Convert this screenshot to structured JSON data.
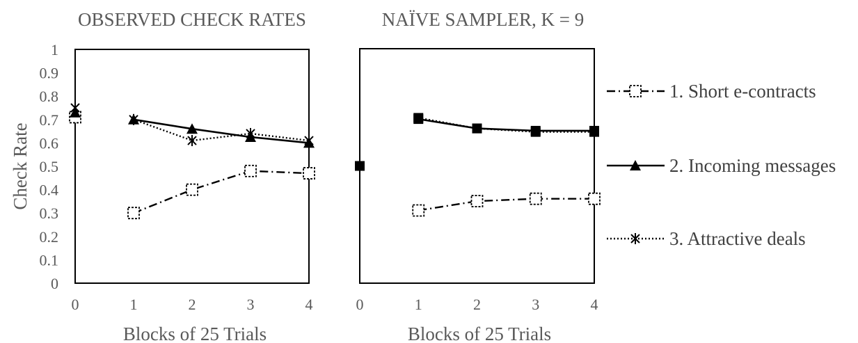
{
  "chart_data": [
    {
      "type": "line",
      "title": "OBSERVED CHECK RATES",
      "xlabel": "Blocks of 25 Trials",
      "ylabel": "Check Rate",
      "ylim": [
        0,
        1
      ],
      "xlim": [
        0,
        4
      ],
      "x_ticks": [
        "0",
        "1",
        "2",
        "3",
        "4"
      ],
      "y_ticks": [
        "0",
        "0.1",
        "0.2",
        "0.3",
        "0.4",
        "0.5",
        "0.6",
        "0.7",
        "0.8",
        "0.9",
        "1"
      ],
      "grid": false,
      "series": [
        {
          "name": "1. Short e-contracts",
          "points": [
            [
              0,
              0.71
            ],
            [
              1,
              0.3
            ],
            [
              2,
              0.4
            ],
            [
              3,
              0.48
            ],
            [
              4,
              0.47
            ]
          ]
        },
        {
          "name": "2. Incoming messages",
          "points": [
            [
              0,
              0.73
            ],
            [
              1,
              0.7
            ],
            [
              2,
              0.66
            ],
            [
              3,
              0.625
            ],
            [
              4,
              0.6
            ]
          ]
        },
        {
          "name": "3. Attractive deals",
          "points": [
            [
              0,
              0.75
            ],
            [
              1,
              0.7
            ],
            [
              2,
              0.61
            ],
            [
              3,
              0.64
            ],
            [
              4,
              0.61
            ]
          ]
        }
      ]
    },
    {
      "type": "line",
      "title": "NAÏVE SAMPLER, K = 9",
      "xlabel": "Blocks of 25 Trials",
      "ylim": [
        0,
        1
      ],
      "xlim": [
        0,
        4
      ],
      "x_ticks": [
        "0",
        "1",
        "2",
        "3",
        "4"
      ],
      "grid": false,
      "extra_points": [
        {
          "x": 0,
          "y": 0.5
        }
      ],
      "series": [
        {
          "name": "1. Short e-contracts",
          "points": [
            [
              1,
              0.31
            ],
            [
              2,
              0.35
            ],
            [
              3,
              0.36
            ],
            [
              4,
              0.36
            ]
          ]
        },
        {
          "name": "2. Incoming messages",
          "points": [
            [
              1,
              0.7
            ],
            [
              2,
              0.66
            ],
            [
              3,
              0.65
            ],
            [
              4,
              0.65
            ]
          ]
        },
        {
          "name": "3. Attractive deals",
          "points": [
            [
              1,
              0.705
            ],
            [
              2,
              0.66
            ],
            [
              3,
              0.645
            ],
            [
              4,
              0.645
            ]
          ]
        }
      ]
    }
  ],
  "legend": {
    "position": "right",
    "items": [
      {
        "label": "1. Short e-contracts",
        "line": "dash-dot",
        "marker": "open-square"
      },
      {
        "label": "2. Incoming messages",
        "line": "solid",
        "marker": "triangle"
      },
      {
        "label": "3. Attractive deals",
        "line": "dotted",
        "marker": "asterisk"
      }
    ]
  }
}
